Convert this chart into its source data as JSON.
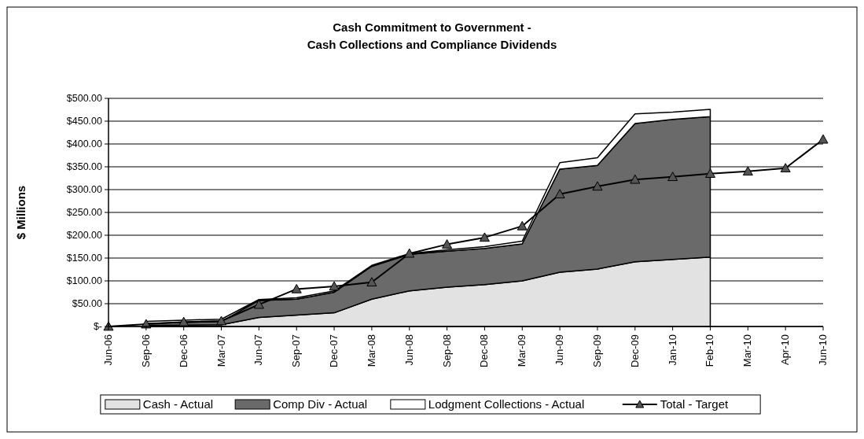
{
  "chart_data": {
    "type": "area",
    "title": "Cash Commitment to Government -",
    "subtitle": "Cash Collections and Compliance Dividends",
    "ylabel": "$ Millions",
    "categories": [
      "Jun-06",
      "Sep-06",
      "Dec-06",
      "Mar-07",
      "Jun-07",
      "Sep-07",
      "Dec-07",
      "Mar-08",
      "Jun-08",
      "Sep-08",
      "Dec-08",
      "Mar-09",
      "Jun-09",
      "Sep-09",
      "Dec-09",
      "Jan-10",
      "Feb-10",
      "Mar-10",
      "Apr-10",
      "Jun-10"
    ],
    "stacked": true,
    "series": [
      {
        "name": "Cash - Actual",
        "color": "#e2e2e2",
        "values": [
          null,
          2,
          3,
          4,
          20,
          25,
          30,
          60,
          78,
          86,
          92,
          100,
          119,
          126,
          142,
          147,
          152,
          null,
          null,
          null
        ]
      },
      {
        "name": "Comp Div - Actual",
        "color": "#6a6a6a",
        "values": [
          null,
          5,
          6,
          7,
          37,
          35,
          45,
          72,
          80,
          79,
          79,
          81,
          226,
          227,
          303,
          307,
          308,
          null,
          null,
          null
        ]
      },
      {
        "name": "Lodgment Collections - Actual",
        "color": "#ffffff",
        "values": [
          null,
          4,
          5,
          5,
          2,
          3,
          3,
          2,
          2,
          3,
          4,
          6,
          14,
          17,
          21,
          16,
          16,
          null,
          null,
          null
        ]
      },
      {
        "name": "Total - Target",
        "type": "line",
        "color": "#000000",
        "marker": "triangle",
        "values": [
          0,
          5,
          10,
          12,
          48,
          82,
          88,
          97,
          160,
          180,
          195,
          220,
          290,
          307,
          322,
          328,
          335,
          340,
          347,
          410
        ]
      }
    ],
    "ylim": [
      0,
      500
    ],
    "yticks": [
      {
        "value": 0,
        "label": "$-"
      },
      {
        "value": 50,
        "label": "$50.00"
      },
      {
        "value": 100,
        "label": "$100.00"
      },
      {
        "value": 150,
        "label": "$150.00"
      },
      {
        "value": 200,
        "label": "$200.00"
      },
      {
        "value": 250,
        "label": "$250.00"
      },
      {
        "value": 300,
        "label": "$300.00"
      },
      {
        "value": 350,
        "label": "$350.00"
      },
      {
        "value": 400,
        "label": "$400.00"
      },
      {
        "value": 450,
        "label": "$450.00"
      },
      {
        "value": 500,
        "label": "$500.00"
      }
    ],
    "grid": "y",
    "legend": "bottom"
  }
}
